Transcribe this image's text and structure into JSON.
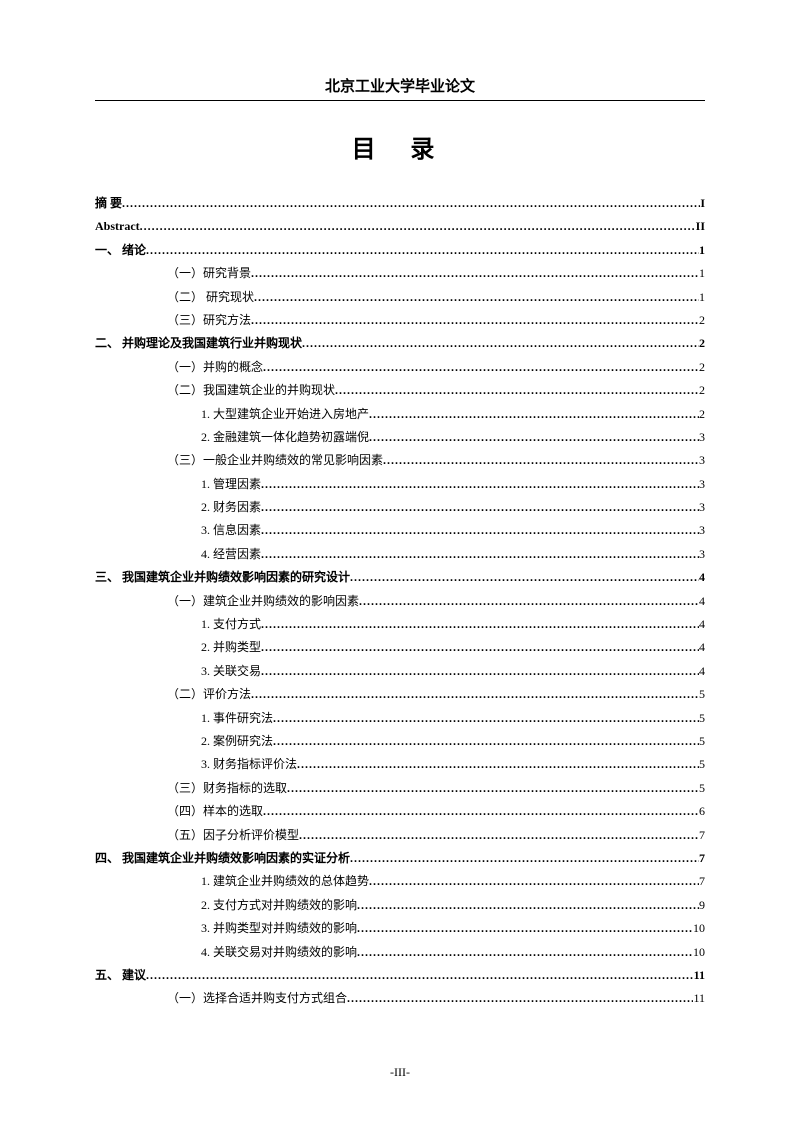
{
  "header": "北京工业大学毕业论文",
  "title": "目  录",
  "footer": "-III-",
  "entries": [
    {
      "label": "摘      要",
      "page": "I",
      "indent": 0,
      "level": 0
    },
    {
      "label": "Abstract",
      "page": "II",
      "indent": 0,
      "level": 0
    },
    {
      "label": "一、  绪论",
      "page": "1",
      "indent": 0,
      "level": 0
    },
    {
      "label": "（一）研究背景",
      "page": "1",
      "indent": 1,
      "level": 1
    },
    {
      "label": "（二）   研究现状",
      "page": "1",
      "indent": 1,
      "level": 1
    },
    {
      "label": "（三）研究方法",
      "page": "2",
      "indent": 1,
      "level": 1
    },
    {
      "label": "二、  并购理论及我国建筑行业并购现状",
      "page": "2",
      "indent": 0,
      "level": 0
    },
    {
      "label": "（一）并购的概念",
      "page": "2",
      "indent": 1,
      "level": 1
    },
    {
      "label": "（二）我国建筑企业的并购现状",
      "page": "2",
      "indent": 1,
      "level": 1
    },
    {
      "label": "1. 大型建筑企业开始进入房地产",
      "page": "2",
      "indent": 2,
      "level": 2
    },
    {
      "label": "2. 金融建筑一体化趋势初露端倪",
      "page": "3",
      "indent": 2,
      "level": 2
    },
    {
      "label": "（三）一般企业并购绩效的常见影响因素",
      "page": "3",
      "indent": 1,
      "level": 1
    },
    {
      "label": "1. 管理因素",
      "page": "3",
      "indent": 2,
      "level": 2
    },
    {
      "label": "2. 财务因素",
      "page": "3",
      "indent": 2,
      "level": 2
    },
    {
      "label": "3. 信息因素",
      "page": "3",
      "indent": 2,
      "level": 2
    },
    {
      "label": "4. 经营因素",
      "page": "3",
      "indent": 2,
      "level": 2
    },
    {
      "label": "三、  我国建筑企业并购绩效影响因素的研究设计",
      "page": "4",
      "indent": 0,
      "level": 0
    },
    {
      "label": "（一）建筑企业并购绩效的影响因素",
      "page": "4",
      "indent": 1,
      "level": 1
    },
    {
      "label": "1. 支付方式",
      "page": "4",
      "indent": 2,
      "level": 2
    },
    {
      "label": "2. 并购类型",
      "page": "4",
      "indent": 2,
      "level": 2
    },
    {
      "label": "3. 关联交易",
      "page": "4",
      "indent": 2,
      "level": 2
    },
    {
      "label": "（二）评价方法",
      "page": "5",
      "indent": 1,
      "level": 1
    },
    {
      "label": "1. 事件研究法",
      "page": "5",
      "indent": 2,
      "level": 2
    },
    {
      "label": "2. 案例研究法",
      "page": "5",
      "indent": 2,
      "level": 2
    },
    {
      "label": "3. 财务指标评价法",
      "page": "5",
      "indent": 2,
      "level": 2
    },
    {
      "label": "（三）财务指标的选取",
      "page": "5",
      "indent": 1,
      "level": 1
    },
    {
      "label": "（四）样本的选取",
      "page": "6",
      "indent": 1,
      "level": 1
    },
    {
      "label": "（五）因子分析评价模型",
      "page": "7",
      "indent": 1,
      "level": 1
    },
    {
      "label": "四、  我国建筑企业并购绩效影响因素的实证分析",
      "page": "7",
      "indent": 0,
      "level": 0
    },
    {
      "label": "1. 建筑企业并购绩效的总体趋势",
      "page": "7",
      "indent": 2,
      "level": 2
    },
    {
      "label": "2. 支付方式对并购绩效的影响",
      "page": "9",
      "indent": 2,
      "level": 2
    },
    {
      "label": "3.  并购类型对并购绩效的影响",
      "page": "10",
      "indent": 2,
      "level": 2
    },
    {
      "label": "4.  关联交易对并购绩效的影响",
      "page": "10",
      "indent": 2,
      "level": 2
    },
    {
      "label": "五、  建议",
      "page": "11",
      "indent": 0,
      "level": 0
    },
    {
      "label": "（一）选择合适并购支付方式组合",
      "page": "11",
      "indent": 1,
      "level": 1
    }
  ]
}
